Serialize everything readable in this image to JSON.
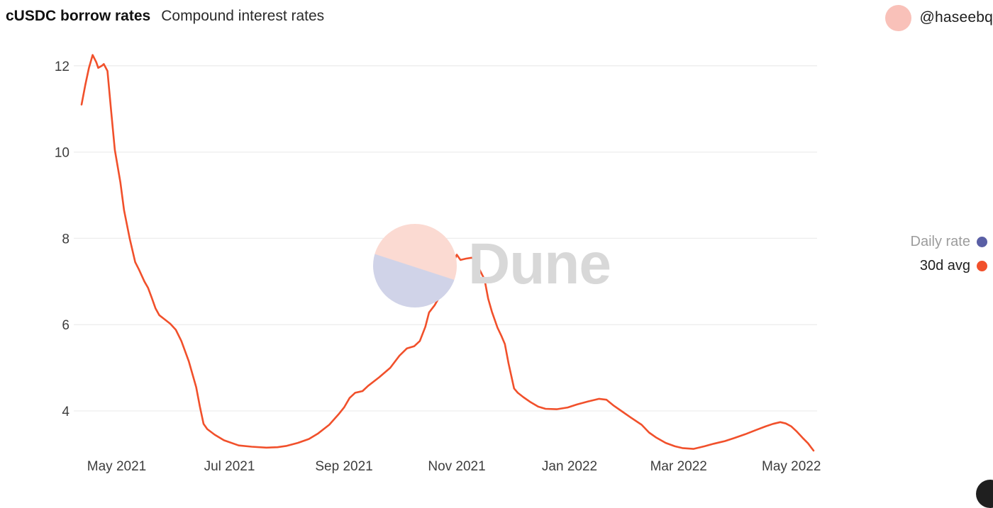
{
  "header": {
    "title": "cUSDC borrow rates",
    "subtitle": "Compound interest rates",
    "author_handle": "@haseebq"
  },
  "watermark": {
    "text": "Dune"
  },
  "legend": {
    "items": [
      {
        "label": "Daily rate",
        "color": "#5a5fa5",
        "muted": true
      },
      {
        "label": "30d avg",
        "color": "#f1502b",
        "muted": false
      }
    ]
  },
  "colors": {
    "line": "#f1502b",
    "gridline": "#ededed",
    "tick_text": "#3d3d3d",
    "avatar_pink": "#f9c1b9",
    "watermark_pink": "#fbdad2",
    "watermark_lavender": "#d0d3e8",
    "watermark_text": "#d8d8d8"
  },
  "chart_data": {
    "type": "line",
    "title": "cUSDC borrow rates",
    "subtitle": "Compound interest rates",
    "xlabel": "",
    "ylabel": "",
    "grid": "horizontal",
    "legend_position": "right",
    "ylim": [
      3.0,
      12.5
    ],
    "yticks": [
      4,
      6,
      8,
      10,
      12
    ],
    "xdomain": [
      "2021-04-12",
      "2022-05-13"
    ],
    "xticks": [
      {
        "date": "2021-05-01",
        "label": "May 2021"
      },
      {
        "date": "2021-07-01",
        "label": "Jul 2021"
      },
      {
        "date": "2021-09-01",
        "label": "Sep 2021"
      },
      {
        "date": "2021-11-01",
        "label": "Nov 2021"
      },
      {
        "date": "2022-01-01",
        "label": "Jan 2022"
      },
      {
        "date": "2022-03-01",
        "label": "Mar 2022"
      },
      {
        "date": "2022-05-01",
        "label": "May 2022"
      }
    ],
    "series": [
      {
        "name": "Daily rate",
        "color": "#5a5fa5",
        "visible": false,
        "points": []
      },
      {
        "name": "30d avg",
        "color": "#f1502b",
        "visible": true,
        "points": [
          [
            "2021-04-12",
            11.1
          ],
          [
            "2021-04-14",
            11.55
          ],
          [
            "2021-04-16",
            11.95
          ],
          [
            "2021-04-18",
            12.25
          ],
          [
            "2021-04-20",
            12.08
          ],
          [
            "2021-04-21",
            11.95
          ],
          [
            "2021-04-23",
            12.0
          ],
          [
            "2021-04-24",
            12.04
          ],
          [
            "2021-04-26",
            11.88
          ],
          [
            "2021-04-28",
            10.95
          ],
          [
            "2021-04-30",
            10.05
          ],
          [
            "2021-05-03",
            9.3
          ],
          [
            "2021-05-05",
            8.65
          ],
          [
            "2021-05-08",
            8.0
          ],
          [
            "2021-05-11",
            7.45
          ],
          [
            "2021-05-13",
            7.28
          ],
          [
            "2021-05-16",
            7.0
          ],
          [
            "2021-05-18",
            6.85
          ],
          [
            "2021-05-20",
            6.62
          ],
          [
            "2021-05-22",
            6.38
          ],
          [
            "2021-05-24",
            6.22
          ],
          [
            "2021-05-27",
            6.12
          ],
          [
            "2021-05-30",
            6.02
          ],
          [
            "2021-06-02",
            5.88
          ],
          [
            "2021-06-05",
            5.62
          ],
          [
            "2021-06-09",
            5.15
          ],
          [
            "2021-06-13",
            4.55
          ],
          [
            "2021-06-15",
            4.1
          ],
          [
            "2021-06-17",
            3.7
          ],
          [
            "2021-06-19",
            3.58
          ],
          [
            "2021-06-23",
            3.45
          ],
          [
            "2021-06-28",
            3.32
          ],
          [
            "2021-07-06",
            3.2
          ],
          [
            "2021-07-13",
            3.17
          ],
          [
            "2021-07-21",
            3.15
          ],
          [
            "2021-07-27",
            3.16
          ],
          [
            "2021-08-01",
            3.19
          ],
          [
            "2021-08-07",
            3.26
          ],
          [
            "2021-08-13",
            3.35
          ],
          [
            "2021-08-18",
            3.48
          ],
          [
            "2021-08-24",
            3.68
          ],
          [
            "2021-08-29",
            3.92
          ],
          [
            "2021-09-01",
            4.08
          ],
          [
            "2021-09-04",
            4.3
          ],
          [
            "2021-09-07",
            4.42
          ],
          [
            "2021-09-11",
            4.46
          ],
          [
            "2021-09-14",
            4.58
          ],
          [
            "2021-09-20",
            4.78
          ],
          [
            "2021-09-26",
            5.0
          ],
          [
            "2021-10-01",
            5.28
          ],
          [
            "2021-10-05",
            5.45
          ],
          [
            "2021-10-09",
            5.5
          ],
          [
            "2021-10-12",
            5.62
          ],
          [
            "2021-10-15",
            5.95
          ],
          [
            "2021-10-17",
            6.28
          ],
          [
            "2021-10-20",
            6.45
          ],
          [
            "2021-10-22",
            6.6
          ],
          [
            "2021-10-25",
            6.8
          ],
          [
            "2021-10-27",
            7.1
          ],
          [
            "2021-10-30",
            7.42
          ],
          [
            "2021-11-01",
            7.62
          ],
          [
            "2021-11-03",
            7.5
          ],
          [
            "2021-11-06",
            7.53
          ],
          [
            "2021-11-09",
            7.55
          ],
          [
            "2021-11-11",
            7.5
          ],
          [
            "2021-11-13",
            7.3
          ],
          [
            "2021-11-16",
            7.05
          ],
          [
            "2021-11-18",
            6.6
          ],
          [
            "2021-11-20",
            6.3
          ],
          [
            "2021-11-23",
            5.93
          ],
          [
            "2021-11-25",
            5.75
          ],
          [
            "2021-11-27",
            5.55
          ],
          [
            "2021-11-29",
            5.1
          ],
          [
            "2021-12-02",
            4.52
          ],
          [
            "2021-12-04",
            4.42
          ],
          [
            "2021-12-07",
            4.32
          ],
          [
            "2021-12-11",
            4.2
          ],
          [
            "2021-12-15",
            4.1
          ],
          [
            "2021-12-19",
            4.05
          ],
          [
            "2021-12-25",
            4.04
          ],
          [
            "2021-12-31",
            4.08
          ],
          [
            "2022-01-05",
            4.15
          ],
          [
            "2022-01-11",
            4.22
          ],
          [
            "2022-01-17",
            4.28
          ],
          [
            "2022-01-21",
            4.26
          ],
          [
            "2022-01-25",
            4.12
          ],
          [
            "2022-01-29",
            4.0
          ],
          [
            "2022-02-03",
            3.85
          ],
          [
            "2022-02-09",
            3.68
          ],
          [
            "2022-02-13",
            3.5
          ],
          [
            "2022-02-17",
            3.38
          ],
          [
            "2022-02-22",
            3.26
          ],
          [
            "2022-02-27",
            3.18
          ],
          [
            "2022-03-03",
            3.14
          ],
          [
            "2022-03-09",
            3.12
          ],
          [
            "2022-03-15",
            3.18
          ],
          [
            "2022-03-20",
            3.24
          ],
          [
            "2022-03-26",
            3.3
          ],
          [
            "2022-03-31",
            3.37
          ],
          [
            "2022-04-06",
            3.46
          ],
          [
            "2022-04-12",
            3.56
          ],
          [
            "2022-04-17",
            3.64
          ],
          [
            "2022-04-21",
            3.7
          ],
          [
            "2022-04-25",
            3.74
          ],
          [
            "2022-04-28",
            3.71
          ],
          [
            "2022-05-01",
            3.64
          ],
          [
            "2022-05-04",
            3.52
          ],
          [
            "2022-05-07",
            3.38
          ],
          [
            "2022-05-10",
            3.25
          ],
          [
            "2022-05-13",
            3.08
          ]
        ]
      }
    ]
  }
}
